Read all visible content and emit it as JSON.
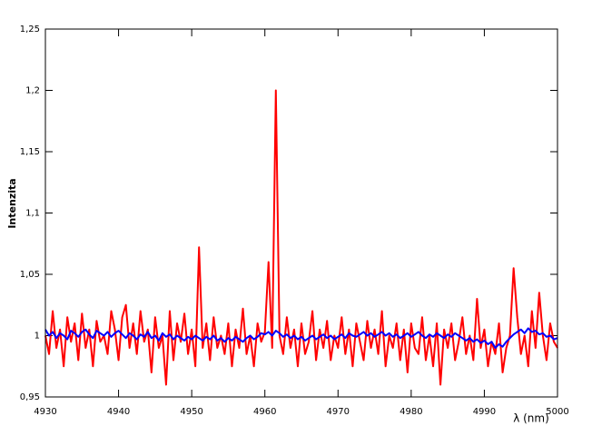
{
  "chart_data": {
    "type": "line",
    "xlabel": "λ (nm)",
    "ylabel": "Intenzita",
    "xlim": [
      4930,
      5000
    ],
    "xticks": [
      4930,
      4940,
      4950,
      4960,
      4970,
      4980,
      4990,
      5000
    ],
    "ylim": [
      0.95,
      1.25
    ],
    "yticks": [
      {
        "value": 0.95,
        "label": "0,95"
      },
      1,
      {
        "value": 1.05,
        "label": "1,05"
      },
      {
        "value": 1.1,
        "label": "1,1"
      },
      {
        "value": 1.15,
        "label": "1,15"
      },
      {
        "value": 1.2,
        "label": "1,2"
      },
      {
        "value": 1.25,
        "label": "1,25"
      }
    ],
    "x": [
      4930,
      4930.5,
      4931,
      4931.5,
      4932,
      4932.5,
      4933,
      4933.5,
      4934,
      4934.5,
      4935,
      4935.5,
      4936,
      4936.5,
      4937,
      4937.5,
      4938,
      4938.5,
      4939,
      4939.5,
      4940,
      4940.5,
      4941,
      4941.5,
      4942,
      4942.5,
      4943,
      4943.5,
      4944,
      4944.5,
      4945,
      4945.5,
      4946,
      4946.5,
      4947,
      4947.5,
      4948,
      4948.5,
      4949,
      4949.5,
      4950,
      4950.5,
      4951,
      4951.5,
      4952,
      4952.5,
      4953,
      4953.5,
      4954,
      4954.5,
      4955,
      4955.5,
      4956,
      4956.5,
      4957,
      4957.5,
      4958,
      4958.5,
      4959,
      4959.5,
      4960,
      4960.5,
      4961,
      4961.5,
      4962,
      4962.5,
      4963,
      4963.5,
      4964,
      4964.5,
      4965,
      4965.5,
      4966,
      4966.5,
      4967,
      4967.5,
      4968,
      4968.5,
      4969,
      4969.5,
      4970,
      4970.5,
      4971,
      4971.5,
      4972,
      4972.5,
      4973,
      4973.5,
      4974,
      4974.5,
      4975,
      4975.5,
      4976,
      4976.5,
      4977,
      4977.5,
      4978,
      4978.5,
      4979,
      4979.5,
      4980,
      4980.5,
      4981,
      4981.5,
      4982,
      4982.5,
      4983,
      4983.5,
      4984,
      4984.5,
      4985,
      4985.5,
      4986,
      4986.5,
      4987,
      4987.5,
      4988,
      4988.5,
      4989,
      4989.5,
      4990,
      4990.5,
      4991,
      4991.5,
      4992,
      4992.5,
      4993,
      4993.5,
      4994,
      4994.5,
      4995,
      4995.5,
      4996,
      4996.5,
      4997,
      4997.5,
      4998,
      4998.5,
      4999,
      4999.5,
      5000
    ],
    "series": [
      {
        "color": "#ff0000",
        "values": [
          1.0,
          0.985,
          1.02,
          0.99,
          1.005,
          0.975,
          1.015,
          0.995,
          1.01,
          0.98,
          1.018,
          0.99,
          1.005,
          0.975,
          1.012,
          0.995,
          1.0,
          0.985,
          1.02,
          1.005,
          0.98,
          1.015,
          1.025,
          0.99,
          1.01,
          0.985,
          1.02,
          0.995,
          1.005,
          0.97,
          1.015,
          0.99,
          1.0,
          0.96,
          1.02,
          0.98,
          1.01,
          0.995,
          1.018,
          0.985,
          1.005,
          0.975,
          1.072,
          0.99,
          1.01,
          0.98,
          1.015,
          0.99,
          1.0,
          0.985,
          1.01,
          0.975,
          1.005,
          0.99,
          1.022,
          0.985,
          1.0,
          0.975,
          1.01,
          0.995,
          1.003,
          1.06,
          0.99,
          1.2,
          1.0,
          0.985,
          1.015,
          0.99,
          1.005,
          0.975,
          1.01,
          0.985,
          0.995,
          1.02,
          0.98,
          1.005,
          0.99,
          1.012,
          0.98,
          1.0,
          0.99,
          1.015,
          0.985,
          1.005,
          0.975,
          1.01,
          0.995,
          0.98,
          1.012,
          0.99,
          1.005,
          0.985,
          1.02,
          0.975,
          1.0,
          0.99,
          1.01,
          0.98,
          1.005,
          0.97,
          1.01,
          0.99,
          0.985,
          1.015,
          0.98,
          1.0,
          0.975,
          1.01,
          0.96,
          1.005,
          0.99,
          1.01,
          0.98,
          0.995,
          1.015,
          0.985,
          1.0,
          0.98,
          1.03,
          0.99,
          1.005,
          0.975,
          0.995,
          0.985,
          1.01,
          0.97,
          0.99,
          1.0,
          1.055,
          1.015,
          0.985,
          1.0,
          0.975,
          1.02,
          0.99,
          1.035,
          1.0,
          0.98,
          1.01,
          0.995,
          0.99
        ]
      },
      {
        "color": "#0000ff",
        "values": [
          1.005,
          1.0,
          1.003,
          0.998,
          1.002,
          1.0,
          0.997,
          1.004,
          1.002,
          0.999,
          1.003,
          1.005,
          1.001,
          0.998,
          1.004,
          1.002,
          1.0,
          1.003,
          0.999,
          1.002,
          1.004,
          1.001,
          0.998,
          1.002,
          1.0,
          0.997,
          1.001,
          0.999,
          1.003,
          0.998,
          1.0,
          0.996,
          1.002,
          0.999,
          1.001,
          0.997,
          1.0,
          0.998,
          0.996,
          0.999,
          0.997,
          1.0,
          0.998,
          0.996,
          0.999,
          0.997,
          1.0,
          0.996,
          0.998,
          0.995,
          0.998,
          0.996,
          0.999,
          0.997,
          0.995,
          0.998,
          1.0,
          0.997,
          0.999,
          1.002,
          1.001,
          1.003,
          1.0,
          1.004,
          1.002,
          0.999,
          1.001,
          0.998,
          1.0,
          0.997,
          0.999,
          0.996,
          0.998,
          1.0,
          0.997,
          0.999,
          1.001,
          0.998,
          1.0,
          0.997,
          0.999,
          1.001,
          0.998,
          1.002,
          1.0,
          0.999,
          1.001,
          1.003,
          1.0,
          1.002,
          0.999,
          1.001,
          1.003,
          1.0,
          1.002,
          0.999,
          1.001,
          0.998,
          1.0,
          1.002,
          0.999,
          1.001,
          1.003,
          1.0,
          0.998,
          1.001,
          0.999,
          1.002,
          1.0,
          0.998,
          1.001,
          0.999,
          1.002,
          1.0,
          0.998,
          0.996,
          0.998,
          0.995,
          0.997,
          0.994,
          0.996,
          0.993,
          0.995,
          0.99,
          0.993,
          0.991,
          0.995,
          0.998,
          1.001,
          1.003,
          1.005,
          1.002,
          1.006,
          1.003,
          1.004,
          1.001,
          1.002,
          0.999,
          1.0,
          0.997,
          0.998
        ]
      }
    ]
  }
}
